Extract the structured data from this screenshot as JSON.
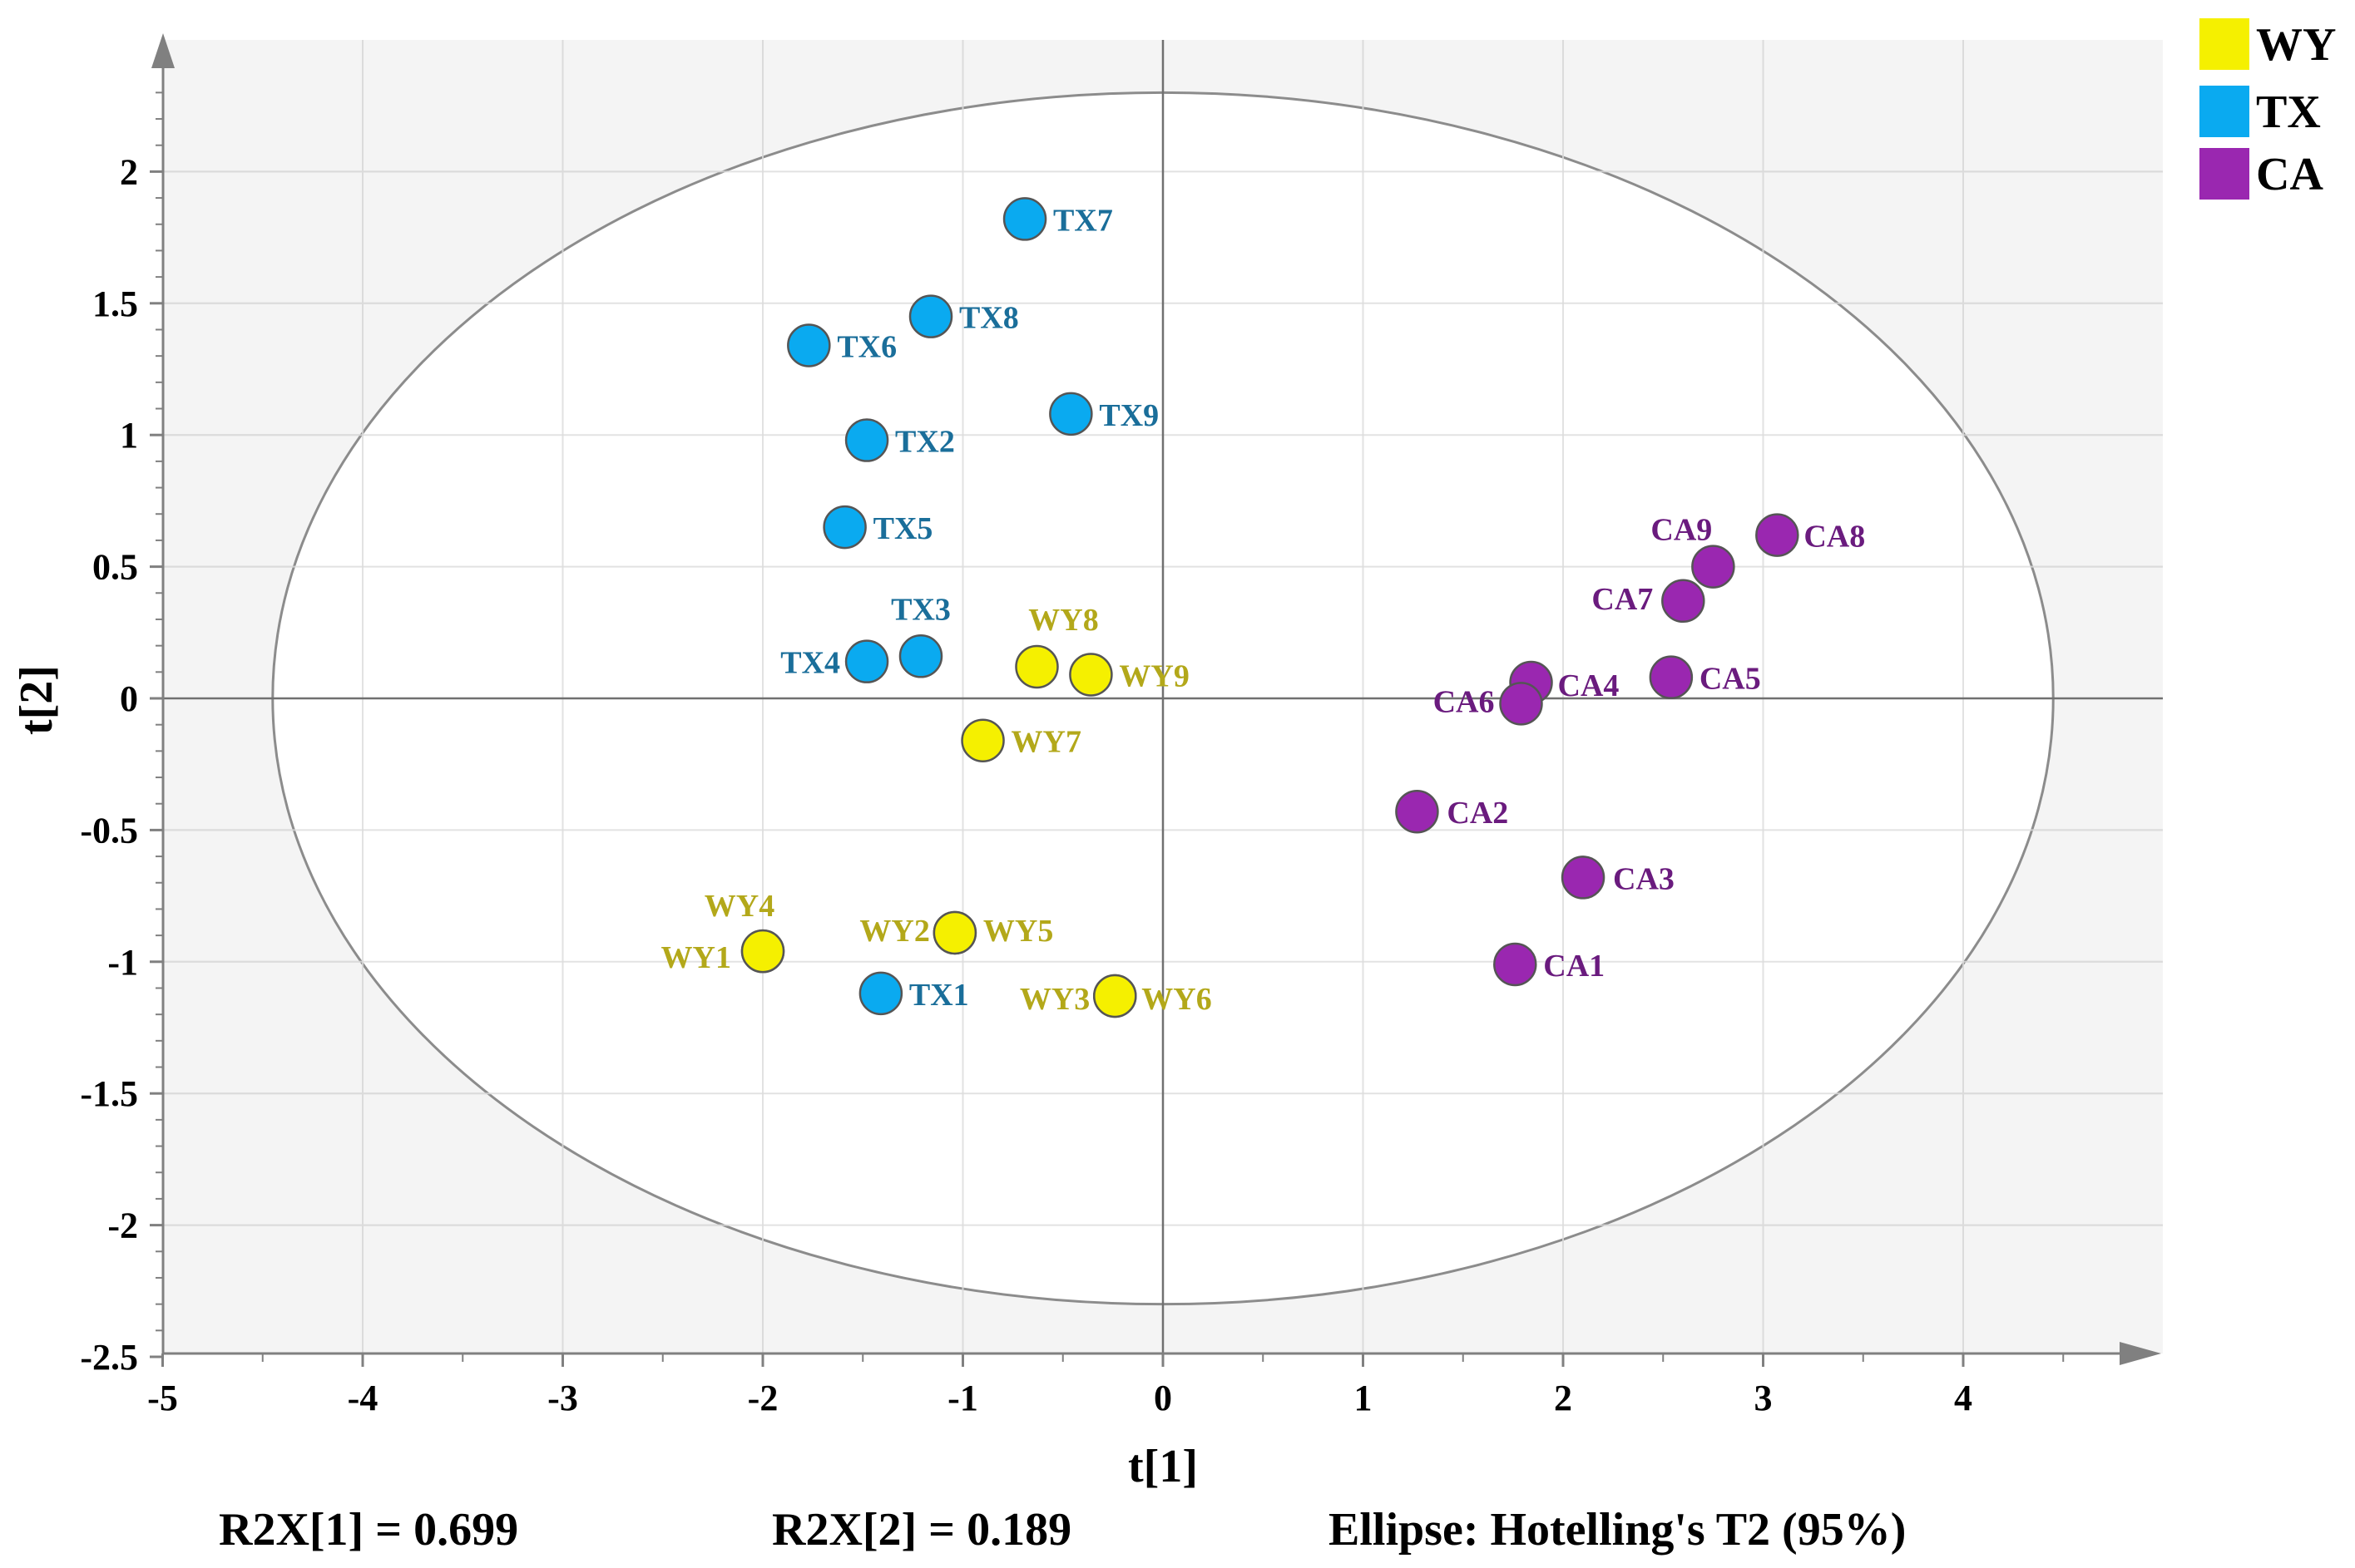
{
  "chart_data": {
    "type": "scatter",
    "title": "",
    "xlabel": "t[1]",
    "ylabel": "t[2]",
    "xlim": [
      -5,
      5
    ],
    "ylim": [
      -2.5,
      2.5
    ],
    "x_ticks": [
      "-5",
      "-4",
      "-3",
      "-2",
      "-1",
      "0",
      "1",
      "2",
      "3",
      "4"
    ],
    "y_ticks": [
      "-2.5",
      "-2",
      "-1.5",
      "-1",
      "-0.5",
      "0",
      "0.5",
      "1",
      "1.5",
      "2"
    ],
    "grid": true,
    "legend_position": "top-right",
    "ellipse": {
      "a": 4.45,
      "b": 2.3,
      "label": "Ellipse: Hotelling's T2 (95%)"
    },
    "series": [
      {
        "name": "WY",
        "color": "#f5f000",
        "label_color": "#b3a81a",
        "points": [
          {
            "label": "WY1",
            "x": -2.0,
            "y": -0.96
          },
          {
            "label": "WY4",
            "x": -2.0,
            "y": -0.96
          },
          {
            "label": "WY2",
            "x": -1.04,
            "y": -0.89
          },
          {
            "label": "WY5",
            "x": -1.04,
            "y": -0.89
          },
          {
            "label": "WY3",
            "x": -0.24,
            "y": -1.13
          },
          {
            "label": "WY6",
            "x": -0.24,
            "y": -1.13
          },
          {
            "label": "WY7",
            "x": -0.9,
            "y": -0.16
          },
          {
            "label": "WY8",
            "x": -0.63,
            "y": 0.12
          },
          {
            "label": "WY9",
            "x": -0.36,
            "y": 0.09
          }
        ]
      },
      {
        "name": "TX",
        "color": "#0aaaf0",
        "label_color": "#1a6e9a",
        "points": [
          {
            "label": "TX1",
            "x": -1.41,
            "y": -1.12
          },
          {
            "label": "TX2",
            "x": -1.48,
            "y": 0.98
          },
          {
            "label": "TX3",
            "x": -1.21,
            "y": 0.16
          },
          {
            "label": "TX4",
            "x": -1.48,
            "y": 0.14
          },
          {
            "label": "TX5",
            "x": -1.59,
            "y": 0.65
          },
          {
            "label": "TX6",
            "x": -1.77,
            "y": 1.34
          },
          {
            "label": "TX7",
            "x": -0.69,
            "y": 1.82
          },
          {
            "label": "TX8",
            "x": -1.16,
            "y": 1.45
          },
          {
            "label": "TX9",
            "x": -0.46,
            "y": 1.08
          }
        ]
      },
      {
        "name": "CA",
        "color": "#9a27b0",
        "label_color": "#6a1b7e",
        "points": [
          {
            "label": "CA1",
            "x": 1.76,
            "y": -1.01
          },
          {
            "label": "CA2",
            "x": 1.27,
            "y": -0.43
          },
          {
            "label": "CA3",
            "x": 2.1,
            "y": -0.68
          },
          {
            "label": "CA4",
            "x": 1.84,
            "y": 0.06
          },
          {
            "label": "CA5",
            "x": 2.54,
            "y": 0.08
          },
          {
            "label": "CA6",
            "x": 1.79,
            "y": -0.02
          },
          {
            "label": "CA7",
            "x": 2.6,
            "y": 0.37
          },
          {
            "label": "CA8",
            "x": 3.07,
            "y": 0.62
          },
          {
            "label": "CA9",
            "x": 2.75,
            "y": 0.5
          }
        ]
      }
    ]
  },
  "footer": {
    "r2x1": "R2X[1] = 0.699",
    "r2x2": "R2X[2] = 0.189",
    "ellipse_note": "Ellipse: Hotelling's T2 (95%)"
  },
  "legend": [
    {
      "name": "WY",
      "color": "#f5f000"
    },
    {
      "name": "TX",
      "color": "#0aaaf0"
    },
    {
      "name": "CA",
      "color": "#9a27b0"
    }
  ]
}
